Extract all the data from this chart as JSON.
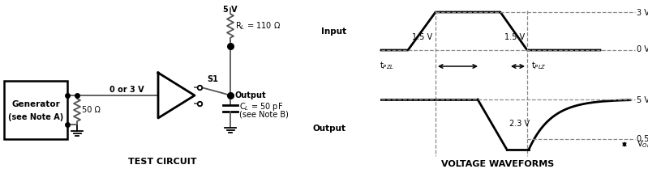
{
  "bg_color": "#ffffff",
  "fs": 7.5,
  "fs_bold": 7.5,
  "circuit_label": "TEST CIRCUIT",
  "waveform_label": "VOLTAGE WAVEFORMS",
  "input_label": "Input",
  "output_label": "Output",
  "v3_label": "3 V",
  "v0_label": "0 V",
  "v5_label": "5 V",
  "v05_label": "0.5 V",
  "vol_label": "V$_{OL}$",
  "v15_1_label": "1.5 V",
  "v15_2_label": "1.5 V",
  "v23_label": "2.3 V",
  "tpzl_label": "t$_{PZL}$",
  "tplz_label": "t$_{PLZ}$",
  "rl_label": "R$_L$ = 110 Ω",
  "cl_label": "C$_L$ = 50 pF",
  "cl_note": "(see Note B)",
  "gen_label1": "Generator",
  "gen_label2": "(see Note A)",
  "v_input_label": "0 or 3 V",
  "r50_label": "50 Ω",
  "s1_label": "S1",
  "v5_supply": "5 V",
  "output_node_label": "Output",
  "line_color": "#555555",
  "black": "#000000",
  "gray_dash": "#888888"
}
